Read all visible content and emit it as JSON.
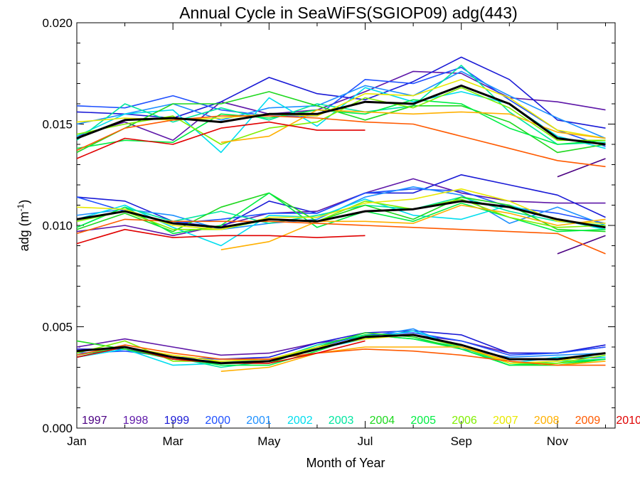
{
  "chart_data": {
    "type": "line",
    "title": "Annual Cycle in SeaWiFS(SGIOP09) adg(443)",
    "xlabel": "Month of Year",
    "ylabel_main": "adg (m",
    "ylabel_sup": "-1",
    "ylabel_close": ")",
    "xlim": [
      1,
      12.2
    ],
    "ylim": [
      0,
      0.02
    ],
    "x_ticks": [
      {
        "x": 1,
        "label": "Jan"
      },
      {
        "x": 3,
        "label": "Mar"
      },
      {
        "x": 5,
        "label": "May"
      },
      {
        "x": 7,
        "label": "Jul"
      },
      {
        "x": 9,
        "label": "Sep"
      },
      {
        "x": 11,
        "label": "Nov"
      }
    ],
    "y_ticks": [
      {
        "y": 0.0,
        "label": "0.000"
      },
      {
        "y": 0.005,
        "label": "0.005"
      },
      {
        "y": 0.01,
        "label": "0.010"
      },
      {
        "y": 0.015,
        "label": "0.015"
      },
      {
        "y": 0.02,
        "label": "0.020"
      }
    ],
    "grid": false,
    "legend_position": "bottom, inside plot, horizontal",
    "mean_color": "#000000",
    "series": [
      {
        "name": "1997",
        "color": "#4B0082",
        "upper": [
          null,
          null,
          null,
          null,
          null,
          null,
          null,
          null,
          null,
          null,
          0.0124,
          0.0133
        ],
        "middle": [
          null,
          null,
          null,
          null,
          null,
          null,
          null,
          null,
          null,
          null,
          0.0086,
          0.0095
        ],
        "lower": [
          null,
          null,
          null,
          null,
          null,
          null,
          null,
          null,
          null,
          null,
          0.0034,
          0.0035
        ]
      },
      {
        "name": "1998",
        "color": "#5E17A8",
        "upper": [
          0.0144,
          0.0151,
          0.0142,
          0.0161,
          0.0155,
          0.0157,
          0.0166,
          0.0176,
          0.0175,
          0.0163,
          0.0161,
          0.0157
        ],
        "middle": [
          0.0097,
          0.01,
          0.0095,
          0.01,
          0.0106,
          0.0107,
          0.0116,
          0.0123,
          0.0116,
          0.0112,
          0.0111,
          0.0111
        ],
        "lower": [
          0.004,
          0.0044,
          0.004,
          0.0036,
          0.0037,
          0.0042,
          0.0045,
          0.0046,
          0.0043,
          0.0037,
          0.0037,
          0.004
        ]
      },
      {
        "name": "1999",
        "color": "#1A1AD6",
        "upper": [
          0.0156,
          0.0155,
          0.0153,
          0.0161,
          0.0173,
          0.0165,
          0.0162,
          0.0171,
          0.0183,
          0.0172,
          0.0152,
          0.0148
        ],
        "middle": [
          0.0114,
          0.0112,
          0.0102,
          0.0099,
          0.0112,
          0.0106,
          0.0116,
          0.0116,
          0.0125,
          0.012,
          0.0115,
          0.0104
        ],
        "lower": [
          0.0039,
          0.0039,
          0.0035,
          0.0034,
          0.0035,
          0.0042,
          0.0047,
          0.0048,
          0.0046,
          0.0037,
          0.0037,
          0.0041
        ]
      },
      {
        "name": "2000",
        "color": "#1E50FF",
        "upper": [
          0.0159,
          0.0158,
          0.0164,
          0.0157,
          0.0154,
          0.0154,
          0.0172,
          0.017,
          0.0178,
          0.0162,
          0.0147,
          0.0139
        ],
        "middle": [
          0.0114,
          0.0107,
          0.0101,
          0.0103,
          0.0106,
          0.0106,
          0.0116,
          0.0118,
          0.0117,
          0.0109,
          0.0106,
          0.0101
        ],
        "lower": [
          0.0037,
          0.0038,
          0.0035,
          0.0034,
          0.0034,
          0.004,
          0.0046,
          0.0047,
          0.0043,
          0.0036,
          0.0037,
          0.004
        ]
      },
      {
        "name": "2001",
        "color": "#1E90FF",
        "upper": [
          0.015,
          0.0155,
          0.016,
          0.0152,
          0.0158,
          0.0159,
          0.0169,
          0.0164,
          0.0176,
          0.0164,
          0.0153,
          0.0143
        ],
        "middle": [
          0.0105,
          0.0108,
          0.0105,
          0.0098,
          0.0101,
          0.0103,
          0.0114,
          0.0119,
          0.0115,
          0.0101,
          0.0109,
          0.01
        ],
        "lower": [
          0.0035,
          0.0039,
          0.0034,
          0.0033,
          0.0033,
          0.0039,
          0.0045,
          0.0049,
          0.0039,
          0.0035,
          0.0036,
          0.0037
        ]
      },
      {
        "name": "2002",
        "color": "#00DDEE",
        "upper": [
          0.0144,
          0.0155,
          0.0157,
          0.0136,
          0.0163,
          0.0149,
          0.0168,
          0.0161,
          0.0166,
          0.016,
          0.0144,
          0.0138
        ],
        "middle": [
          0.0103,
          0.011,
          0.0099,
          0.009,
          0.0105,
          0.0104,
          0.0113,
          0.0105,
          0.0103,
          0.011,
          0.0103,
          0.0098
        ],
        "lower": [
          0.0035,
          0.0039,
          0.0031,
          0.0032,
          0.0033,
          0.0039,
          0.0044,
          0.0048,
          0.004,
          0.0032,
          0.0035,
          0.0035
        ]
      },
      {
        "name": "2003",
        "color": "#00E6A0",
        "upper": [
          0.0142,
          0.016,
          0.0151,
          0.0158,
          0.0152,
          0.016,
          0.0156,
          0.0159,
          0.0179,
          0.0156,
          0.014,
          0.0141
        ],
        "middle": [
          0.0099,
          0.0109,
          0.0102,
          0.0107,
          0.0101,
          0.0105,
          0.011,
          0.0108,
          0.0114,
          0.0107,
          0.0102,
          0.01
        ],
        "lower": [
          0.0035,
          0.004,
          0.0035,
          0.003,
          0.0033,
          0.0041,
          0.0046,
          0.0044,
          0.004,
          0.0031,
          0.0033,
          0.0034
        ]
      },
      {
        "name": "2004",
        "color": "#1ED81E",
        "upper": [
          0.0136,
          0.0148,
          0.016,
          0.016,
          0.0166,
          0.0159,
          0.0152,
          0.0159,
          0.0159,
          0.0151,
          0.0136,
          0.014
        ],
        "middle": [
          0.0098,
          0.0106,
          0.0097,
          0.0109,
          0.0116,
          0.0102,
          0.011,
          0.0103,
          0.0114,
          0.011,
          0.0098,
          0.0097
        ],
        "lower": [
          0.0043,
          0.0039,
          0.0034,
          0.0032,
          0.0032,
          0.004,
          0.0047,
          0.0045,
          0.0039,
          0.0031,
          0.0031,
          0.0034
        ]
      },
      {
        "name": "2005",
        "color": "#00EE44",
        "upper": [
          0.0138,
          0.0142,
          0.0141,
          0.0155,
          0.0153,
          0.0157,
          0.0155,
          0.0162,
          0.016,
          0.0148,
          0.014,
          0.0142
        ],
        "middle": [
          0.0099,
          0.0109,
          0.0096,
          0.01,
          0.0116,
          0.0099,
          0.0107,
          0.0102,
          0.0111,
          0.0104,
          0.0097,
          0.0098
        ],
        "lower": [
          0.0036,
          0.004,
          0.0035,
          0.0031,
          0.0031,
          0.0038,
          0.0046,
          0.0044,
          0.0039,
          0.0031,
          0.0032,
          0.0034
        ]
      },
      {
        "name": "2006",
        "color": "#80EE00",
        "upper": [
          0.0145,
          0.015,
          0.0154,
          0.014,
          0.0148,
          0.0151,
          0.0163,
          0.0158,
          0.0168,
          0.0158,
          0.0142,
          0.0142
        ],
        "middle": [
          0.0102,
          0.0107,
          0.0098,
          0.0098,
          0.0103,
          0.0102,
          0.0112,
          0.0108,
          0.0113,
          0.0104,
          0.0099,
          0.01
        ],
        "lower": [
          0.0037,
          0.0043,
          0.0033,
          0.0033,
          0.0034,
          0.0039,
          0.0045,
          0.0046,
          0.004,
          0.0032,
          0.0032,
          0.0036
        ]
      },
      {
        "name": "2007",
        "color": "#E8E800",
        "upper": [
          0.0151,
          0.0153,
          0.0152,
          0.0153,
          0.0155,
          0.0154,
          0.0165,
          0.0164,
          0.0172,
          0.0163,
          0.0147,
          0.0143
        ],
        "middle": [
          0.0109,
          0.0108,
          0.01,
          0.0098,
          0.0104,
          0.0104,
          0.0111,
          0.0113,
          0.0118,
          0.0112,
          0.0102,
          0.0101
        ],
        "lower": [
          0.0038,
          0.004,
          0.0036,
          0.0033,
          0.0034,
          0.004,
          0.0044,
          0.0046,
          0.0041,
          0.0032,
          0.0033,
          0.0037
        ]
      },
      {
        "name": "2008",
        "color": "#FFB000",
        "upper": [
          null,
          null,
          null,
          0.0141,
          0.0144,
          0.0157,
          0.0156,
          0.0155,
          0.0156,
          0.0155,
          0.0146,
          0.0143
        ],
        "middle": [
          null,
          null,
          null,
          0.0088,
          0.0092,
          0.0102,
          0.0102,
          0.0101,
          0.011,
          0.0106,
          0.01,
          0.0103
        ],
        "lower": [
          null,
          null,
          null,
          0.0028,
          0.003,
          0.0037,
          0.004,
          0.004,
          0.004,
          0.0033,
          0.0031,
          0.0033
        ]
      },
      {
        "name": "2009",
        "color": "#FF5A00",
        "upper": [
          0.0137,
          0.0148,
          0.0152,
          0.0154,
          0.0154,
          0.0153,
          0.0151,
          0.015,
          0.0144,
          0.0138,
          0.0132,
          0.0129
        ],
        "middle": [
          0.0096,
          0.0103,
          0.0102,
          0.0102,
          0.0102,
          0.0101,
          0.01,
          0.0099,
          0.0098,
          0.0097,
          0.0096,
          0.0086
        ],
        "lower": [
          0.0036,
          0.0041,
          0.0037,
          0.0034,
          0.0034,
          0.0037,
          0.0039,
          0.0038,
          0.0036,
          0.0033,
          0.0031,
          0.0031
        ]
      },
      {
        "name": "2010",
        "color": "#E00000",
        "upper": [
          0.0133,
          0.0143,
          0.014,
          0.0148,
          0.0151,
          0.0147,
          0.0147,
          null,
          null,
          null,
          null,
          null
        ],
        "middle": [
          0.0091,
          0.0098,
          0.0094,
          0.0095,
          0.0095,
          0.0094,
          0.0095,
          null,
          null,
          null,
          null,
          null
        ],
        "lower": [
          0.0035,
          0.004,
          0.0034,
          0.0032,
          0.0032,
          0.0037,
          0.0043,
          null,
          null,
          null,
          null,
          null
        ]
      }
    ],
    "mean": {
      "upper": [
        0.0143,
        0.0152,
        0.0153,
        0.0151,
        0.0155,
        0.0155,
        0.0161,
        0.016,
        0.0169,
        0.016,
        0.0143,
        0.014
      ],
      "middle": [
        0.0103,
        0.0107,
        0.0101,
        0.0099,
        0.0103,
        0.0102,
        0.0107,
        0.0108,
        0.0112,
        0.0109,
        0.0103,
        0.0099
      ],
      "lower": [
        0.0038,
        0.004,
        0.0035,
        0.0032,
        0.0033,
        0.0039,
        0.0045,
        0.0046,
        0.0041,
        0.0034,
        0.0034,
        0.0037
      ]
    }
  }
}
